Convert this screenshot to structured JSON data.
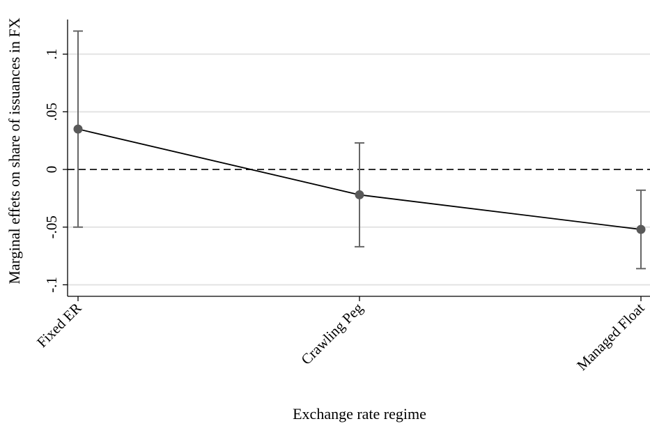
{
  "chart_data": {
    "type": "line",
    "title": "",
    "xlabel": "Exchange rate regime",
    "ylabel": "Marginal effets on share of issuances in FX",
    "categories": [
      "Fixed ER",
      "Crawling Peg",
      "Managed Float"
    ],
    "values": [
      0.035,
      -0.022,
      -0.052
    ],
    "ci_lower": [
      -0.05,
      -0.067,
      -0.086
    ],
    "ci_upper": [
      0.12,
      0.023,
      -0.018
    ],
    "yticks": [
      0.1,
      0.05,
      0,
      -0.05,
      -0.1
    ],
    "ytick_labels": [
      ".1",
      ".05",
      "0",
      "-.05",
      "-.1"
    ],
    "ylim": [
      -0.11,
      0.13
    ],
    "reference_line": 0,
    "grid": true,
    "legend": "none",
    "colors": {
      "line": "#000000",
      "marker": "#595959",
      "ci": "#666666",
      "grid": "#e3e3e3"
    }
  }
}
